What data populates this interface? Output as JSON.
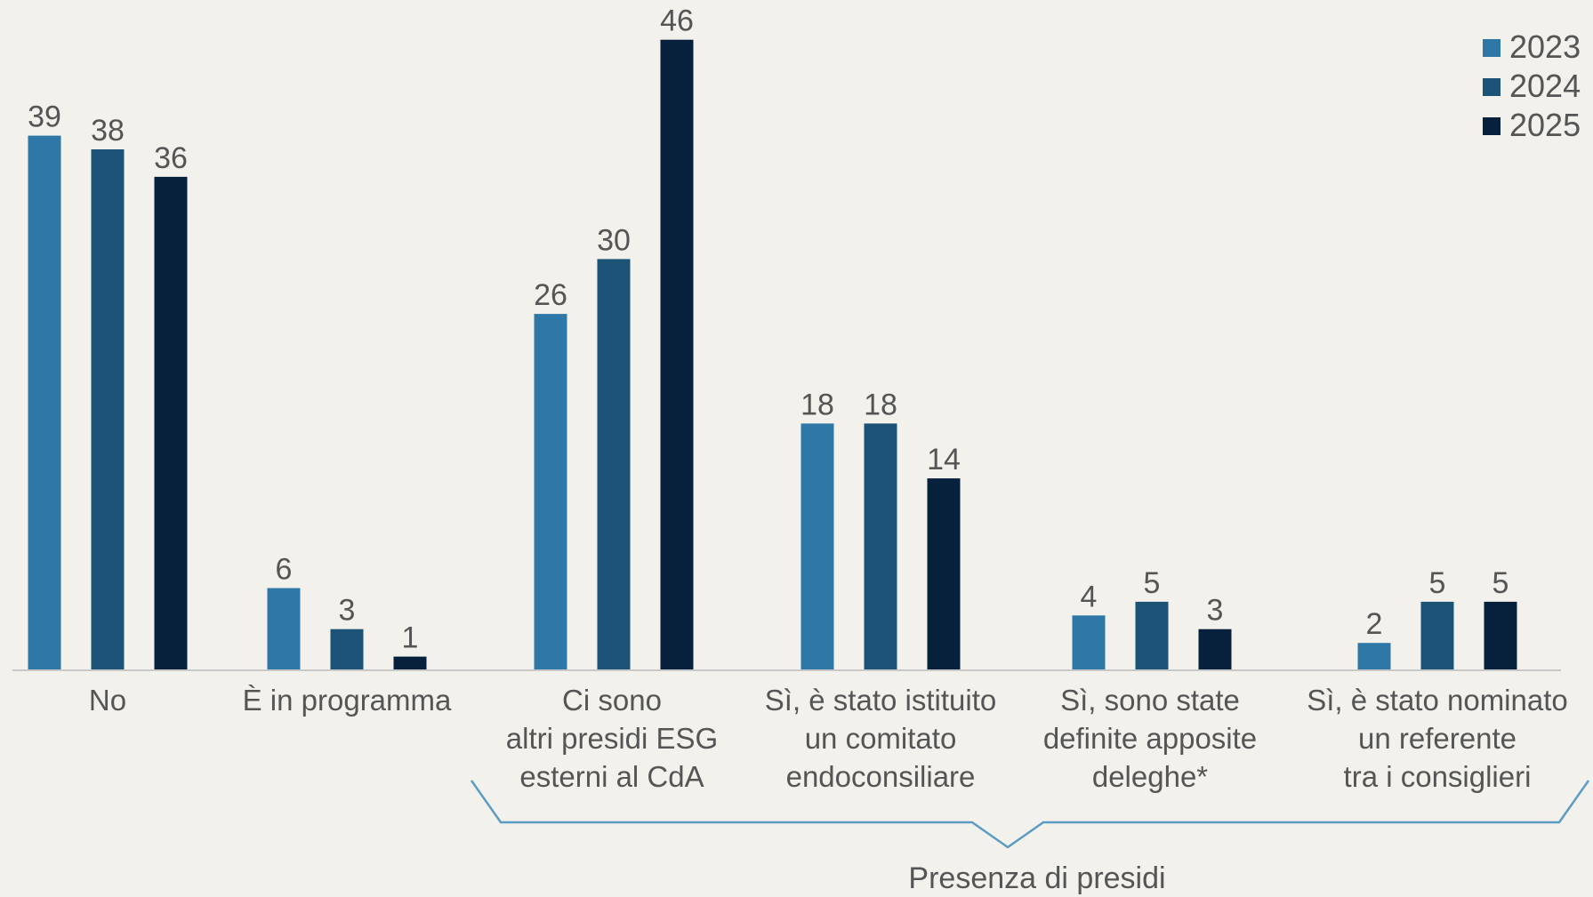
{
  "colors": {
    "2023": "#2e77a6",
    "2024": "#1b5275",
    "2025": "#07213d",
    "axis": "#c8c8c8",
    "brace": "#5a9cc4",
    "text": "#555555"
  },
  "chart_data": {
    "type": "bar",
    "categories": [
      [
        "No"
      ],
      [
        "È in programma"
      ],
      [
        "Ci sono",
        "altri presidi ESG",
        "esterni al CdA"
      ],
      [
        "Sì, è stato istituito",
        "un comitato",
        "endoconsiliare"
      ],
      [
        "Sì, sono state",
        "definite apposite",
        "deleghe*"
      ],
      [
        "Sì, è stato nominato",
        "un referente",
        "tra i consiglieri"
      ]
    ],
    "series": [
      {
        "name": "2023",
        "values": [
          39,
          6,
          26,
          18,
          4,
          2
        ]
      },
      {
        "name": "2024",
        "values": [
          38,
          3,
          30,
          18,
          5,
          5
        ]
      },
      {
        "name": "2025",
        "values": [
          36,
          1,
          46,
          14,
          3,
          5
        ]
      }
    ],
    "ylim": [
      0,
      46
    ],
    "legend": "top-right",
    "grid": false,
    "group_annotation": {
      "label": "Presenza di presidi",
      "spans_categories": [
        2,
        5
      ]
    }
  }
}
